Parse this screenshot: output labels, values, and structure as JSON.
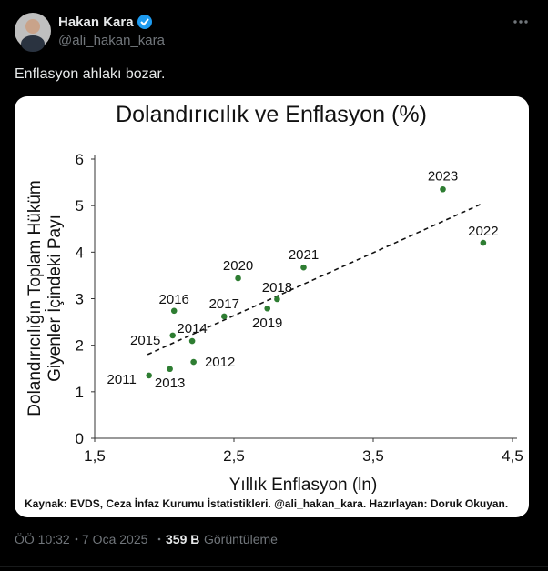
{
  "tweet": {
    "name": "Hakan Kara",
    "handle": "@ali_hakan_kara",
    "text": "Enflasyon ahlakı bozar.",
    "time": "ÖÖ 10:32",
    "date": "7 Oca 2025",
    "views": "359 B",
    "views_label": "Görüntüleme"
  },
  "chart_data": {
    "type": "scatter",
    "title": "Dolandırıcılık ve Enflasyon (%)",
    "x_label": "Yıllık Enflasyon (ln)",
    "y_label": [
      "Dolandırıcılığın Toplam Hüküm",
      "Giyenler İçindeki Payı"
    ],
    "source": "Kaynak: EVDS, Ceza İnfaz Kurumu İstatistikleri. @ali_hakan_kara. Hazırlayan: Doruk Okuyan.",
    "labels": [
      "2011",
      "2013",
      "2012",
      "2014",
      "2015",
      "2016",
      "2017",
      "2020",
      "2019",
      "2018",
      "2021",
      "2023",
      "2022"
    ],
    "x": [
      1.89,
      2.04,
      2.21,
      2.2,
      2.06,
      2.07,
      2.43,
      2.53,
      2.74,
      2.81,
      3.0,
      4.0,
      4.29
    ],
    "series": [
      {
        "color": "#2e7d32",
        "values": [
          1.35,
          1.49,
          1.64,
          2.09,
          2.21,
          2.74,
          2.62,
          3.44,
          2.79,
          2.99,
          3.67,
          5.35,
          4.2
        ]
      }
    ],
    "trendline": {
      "x": [
        1.88,
        4.28
      ],
      "y": [
        1.8,
        5.04
      ]
    },
    "xlim": [
      1.5,
      4.5
    ],
    "ylim": [
      0,
      6
    ],
    "xticks": [
      {
        "value": 1.5,
        "label": "1,5"
      },
      {
        "value": 2.5,
        "label": "2,5"
      },
      {
        "value": 3.5,
        "label": "3,5"
      },
      {
        "value": 4.5,
        "label": "4,5"
      }
    ],
    "yticks": [
      0,
      1,
      2,
      3,
      4,
      5,
      6
    ]
  }
}
